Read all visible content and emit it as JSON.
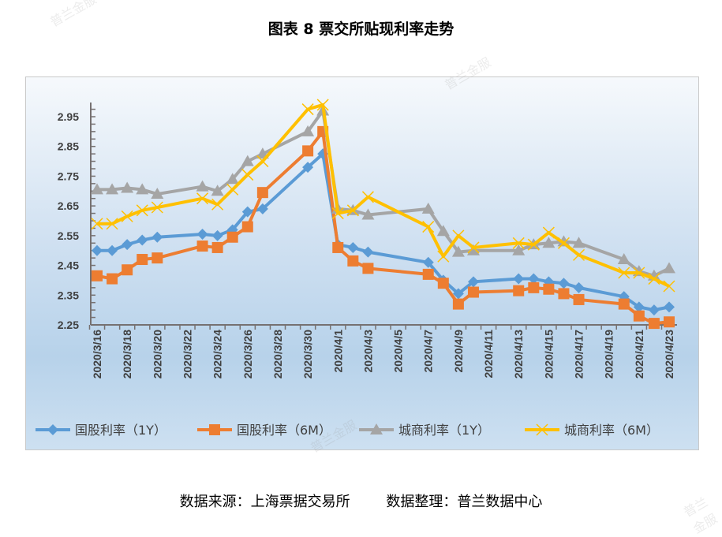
{
  "title": "图表 8  票交所贴现利率走势",
  "source": "数据来源：上海票据交易所        数据整理：普兰数据中心",
  "watermark": "普兰金服",
  "chart_data": {
    "type": "line",
    "title": "图表 8  票交所贴现利率走势",
    "xlabel": "",
    "ylabel": "",
    "ylim": [
      2.25,
      2.99
    ],
    "yticks": [
      "2.25",
      "2.35",
      "2.45",
      "2.55",
      "2.65",
      "2.75",
      "2.85",
      "2.95"
    ],
    "xrange": [
      "2020/3/16",
      "2020/4/23"
    ],
    "xticks": [
      "2020/3/16",
      "2020/3/18",
      "2020/3/20",
      "2020/3/22",
      "2020/3/24",
      "2020/3/26",
      "2020/3/28",
      "2020/3/30",
      "2020/4/1",
      "2020/4/3",
      "2020/4/5",
      "2020/4/7",
      "2020/4/9",
      "2020/4/11",
      "2020/4/13",
      "2020/4/15",
      "2020/4/17",
      "2020/4/19",
      "2020/4/21",
      "2020/4/23"
    ],
    "x": [
      "2020/3/16",
      "2020/3/17",
      "2020/3/18",
      "2020/3/19",
      "2020/3/20",
      "2020/3/23",
      "2020/3/24",
      "2020/3/25",
      "2020/3/26",
      "2020/3/27",
      "2020/3/30",
      "2020/3/31",
      "2020/4/1",
      "2020/4/2",
      "2020/4/3",
      "2020/4/7",
      "2020/4/8",
      "2020/4/9",
      "2020/4/10",
      "2020/4/13",
      "2020/4/14",
      "2020/4/15",
      "2020/4/16",
      "2020/4/17",
      "2020/4/20",
      "2020/4/21",
      "2020/4/22",
      "2020/4/23"
    ],
    "legend_position": "bottom",
    "series": [
      {
        "name": "国股利率（1Y）",
        "color": "#5b9bd5",
        "marker": "diamond",
        "values": [
          2.5,
          2.5,
          2.52,
          2.535,
          2.545,
          2.555,
          2.55,
          2.57,
          2.63,
          2.64,
          2.78,
          2.825,
          2.52,
          2.51,
          2.495,
          2.46,
          2.4,
          2.355,
          2.395,
          2.405,
          2.405,
          2.395,
          2.39,
          2.375,
          2.345,
          2.31,
          2.3,
          2.31
        ]
      },
      {
        "name": "国股利率（6M）",
        "color": "#ed7d31",
        "marker": "square",
        "values": [
          2.415,
          2.405,
          2.435,
          2.47,
          2.475,
          2.515,
          2.51,
          2.545,
          2.58,
          2.695,
          2.835,
          2.9,
          2.51,
          2.465,
          2.44,
          2.42,
          2.39,
          2.32,
          2.36,
          2.365,
          2.375,
          2.37,
          2.355,
          2.335,
          2.32,
          2.28,
          2.255,
          2.26
        ]
      },
      {
        "name": "城商利率（1Y）",
        "color": "#a5a5a5",
        "marker": "triangle",
        "values": [
          2.705,
          2.705,
          2.71,
          2.705,
          2.69,
          2.715,
          2.7,
          2.74,
          2.8,
          2.825,
          2.9,
          2.97,
          2.64,
          2.635,
          2.62,
          2.64,
          2.565,
          2.495,
          2.5,
          2.5,
          2.52,
          2.525,
          2.53,
          2.525,
          2.47,
          2.43,
          2.415,
          2.44
        ]
      },
      {
        "name": "城商利率（6M）",
        "color": "#ffc000",
        "marker": "x",
        "values": [
          2.59,
          2.59,
          2.615,
          2.635,
          2.645,
          2.675,
          2.655,
          2.705,
          2.755,
          2.8,
          2.975,
          2.99,
          2.625,
          2.635,
          2.68,
          2.58,
          2.48,
          2.55,
          2.51,
          2.525,
          2.52,
          2.56,
          2.525,
          2.485,
          2.425,
          2.425,
          2.405,
          2.38
        ]
      }
    ]
  }
}
